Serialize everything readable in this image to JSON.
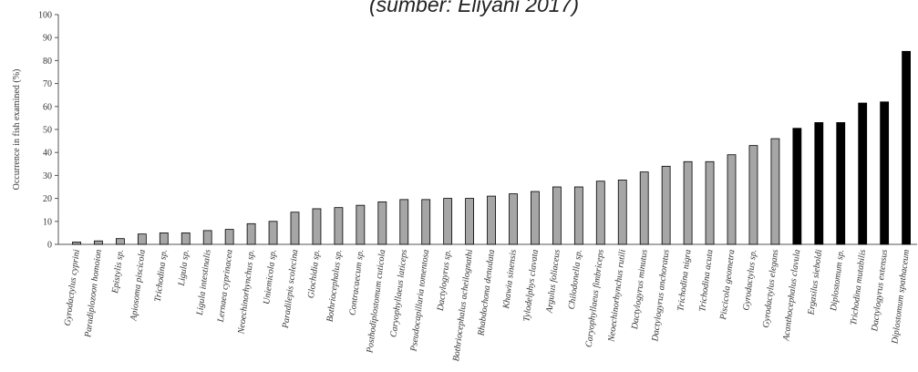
{
  "caption": "(sumber: Eliyani 2017)",
  "chart_data": {
    "type": "bar",
    "title": "",
    "xlabel": "",
    "ylabel": "Occurrence in fish examined (%)",
    "ylim": [
      0,
      100
    ],
    "yticks": [
      0,
      10,
      20,
      30,
      40,
      50,
      60,
      70,
      80,
      90,
      100
    ],
    "grid": false,
    "categories": [
      "Gyrodactylus cyprini",
      "Paradiplozoon homoion",
      "Epistylis sp.",
      "Apiosoma piscicola",
      "Trichodina sp.",
      "Ligula sp.",
      "Ligula intestinalis",
      "Lernaea cyprinacea",
      "Neoechinorhynchus sp.",
      "Uniemicola sp.",
      "Paradilepis scolecina",
      "Glochidia sp.",
      "Bothriocephalus sp.",
      "Contracaecum sp.",
      "Posthodiplostomum cuticola",
      "Caryophyllaeus laticeps",
      "Pseudocapillaria tomentosa",
      "Dactylogyrus sp.",
      "Bothriocephalus acheilognathi",
      "Rhabdochona denudata",
      "Khawia sinensis",
      "Tylodelphys clavata",
      "Argulus foliaceus",
      "Chilodonella sp.",
      "Caryophyllaeus fimbriceps",
      "Neoechinorhynchus rutili",
      "Dactylogyrus minutus",
      "Dactylogyrus anchoratus",
      "Trichodina nigra",
      "Trichodina acuta",
      "Piscicola geometra",
      "Gyrodactylus sp.",
      "Gyrodactylus elegans",
      "Acanthocephalus clavula",
      "Ergasilus sieboldi",
      "Diplostomum sp.",
      "Trichodina mutabilis",
      "Dactylogyrus extensus",
      "Diplostomum spathaceum"
    ],
    "values": [
      1,
      1.5,
      2.5,
      4.5,
      5,
      5,
      6,
      6.5,
      9,
      10,
      14,
      15.5,
      16,
      17,
      18.5,
      19.5,
      19.5,
      20,
      20,
      21,
      22,
      23,
      25,
      25,
      27.5,
      28,
      31.5,
      34,
      36,
      36,
      39,
      43,
      46,
      50.5,
      53,
      53,
      61.5,
      62,
      84
    ],
    "highlight_from_index": 33,
    "colors": {
      "normal": "#a6a6a6",
      "highlight": "#000000",
      "stroke": "#000000",
      "axis": "#555555"
    }
  }
}
